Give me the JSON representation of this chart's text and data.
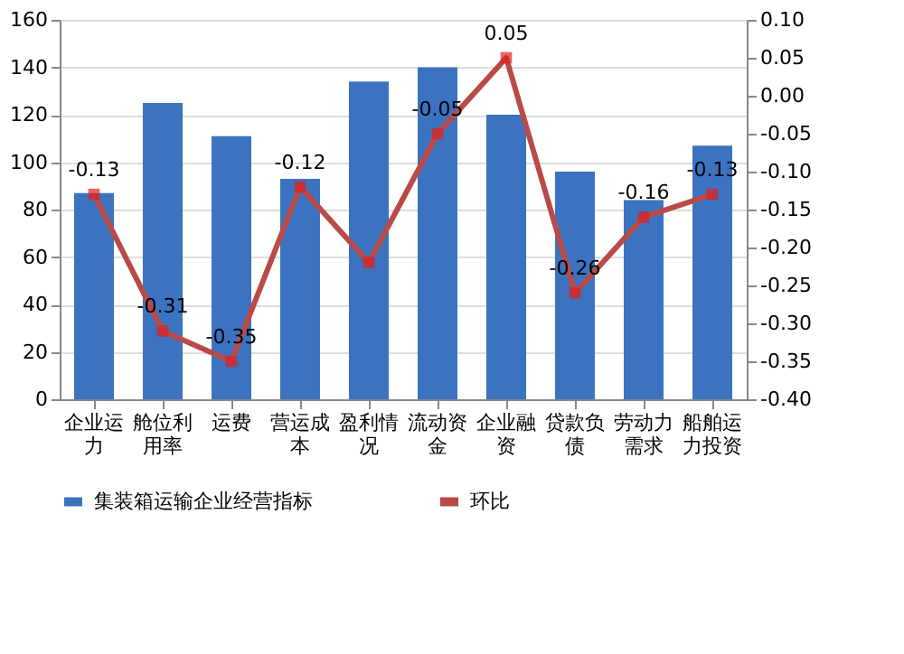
{
  "chart_data": {
    "type": "bar",
    "categories": [
      "企业运力",
      "舱位利用率",
      "运费",
      "营运成本",
      "盈利情况",
      "流动资金",
      "企业融资",
      "贷款负债",
      "劳动力需求",
      "船舶运力投资"
    ],
    "series": [
      {
        "name": "集装箱运输企业经营指标",
        "color": "#3b73c0",
        "values": [
          87,
          125,
          111,
          93,
          134,
          140,
          120,
          96,
          84,
          107
        ]
      },
      {
        "name": "环比",
        "type": "line",
        "axis": "y2",
        "color": "#b94a48",
        "marker": "square",
        "values": [
          -0.13,
          -0.31,
          -0.35,
          -0.12,
          -0.22,
          -0.05,
          0.05,
          -0.26,
          -0.16,
          -0.13
        ],
        "value_labels": [
          "-0.13",
          "-0.31",
          "-0.35",
          "-0.12",
          null,
          "-0.05",
          "0.05",
          "-0.26",
          "-0.16",
          "-0.13"
        ]
      }
    ],
    "ylim": [
      0,
      160
    ],
    "yticks": [
      0,
      20,
      40,
      60,
      80,
      100,
      120,
      140,
      160
    ],
    "y2lim": [
      -0.4,
      0.1
    ],
    "y2ticks": [
      {
        "value": -0.4,
        "label": "-0.40"
      },
      {
        "value": -0.35,
        "label": "-0.35"
      },
      {
        "value": -0.3,
        "label": "-0.30"
      },
      {
        "value": -0.25,
        "label": "-0.25"
      },
      {
        "value": -0.2,
        "label": "-0.20"
      },
      {
        "value": -0.15,
        "label": "-0.15"
      },
      {
        "value": -0.1,
        "label": "-0.10"
      },
      {
        "value": -0.05,
        "label": "-0.05"
      },
      {
        "value": 0,
        "label": "0.00"
      },
      {
        "value": 0.05,
        "label": "0.05"
      },
      {
        "value": 0.1,
        "label": "0.10"
      }
    ],
    "grid": "y",
    "legend": "bottom"
  }
}
